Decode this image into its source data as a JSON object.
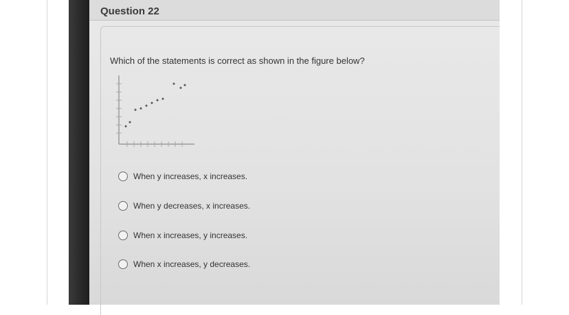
{
  "header": {
    "title": "Question 22"
  },
  "question": "Which of the statements is correct as shown in the figure below?",
  "options": [
    "When y increases, x increases.",
    "When y decreases, x increases.",
    "When x increases, y increases.",
    "When x increases, y decreases."
  ]
}
